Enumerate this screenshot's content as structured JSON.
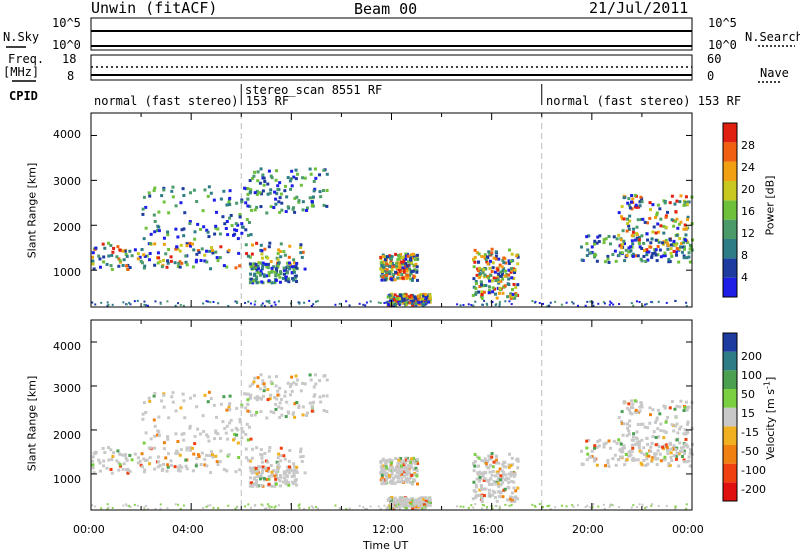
{
  "header": {
    "station": "Unwin (fitACF)",
    "beam": "Beam 00",
    "date": "21/Jul/2011"
  },
  "top_panels": {
    "nsky_label": "N.Sky",
    "nsky_ticks": [
      "10^5",
      "10^0"
    ],
    "nsearch_label": "N.Search",
    "nsearch_ticks": [
      "10^5",
      "10^0"
    ],
    "freq_label": "Freq.",
    "freq_unit": "[MHz]",
    "freq_ticks": [
      "18",
      "8"
    ],
    "nave_label": "Nave",
    "nave_ticks": [
      "60",
      "0"
    ],
    "cpid_label": "CPID",
    "cpid_segments": [
      {
        "label": "normal (fast stereo) 153 RF",
        "start_hour": 0
      },
      {
        "label": "stereo_scan 8551 RF",
        "start_hour": 6
      },
      {
        "label": "normal (fast stereo) 153 RF",
        "start_hour": 18
      }
    ]
  },
  "power_colorbar": {
    "title": "Power [dB]",
    "ticks": [
      "28",
      "24",
      "20",
      "16",
      "12",
      "8",
      "4"
    ],
    "colors": [
      "#1e1ee6",
      "#1e3ca0",
      "#2e7d86",
      "#4a9a6a",
      "#6ec03a",
      "#c8c820",
      "#f0a010",
      "#f06010",
      "#e02010"
    ]
  },
  "velocity_colorbar": {
    "title": "Velocity [m s",
    "title_sup": "-1",
    "title_end": "]",
    "ticks": [
      "200",
      "100",
      "50",
      "15",
      "-15",
      "-50",
      "-100",
      "-200"
    ],
    "colors": [
      "#1e3ca0",
      "#2e7d86",
      "#4aa050",
      "#7ad040",
      "#c8c8c8",
      "#f0b020",
      "#f08010",
      "#f04010",
      "#e01010"
    ]
  },
  "chart_data": {
    "type": "heatmap",
    "xlabel": "Time UT",
    "x_ticks": [
      "00:00",
      "04:00",
      "08:00",
      "12:00",
      "16:00",
      "20:00",
      "00:00"
    ],
    "xlim_hours": [
      0,
      24
    ],
    "ylabel": "Slant Range [km]",
    "y_ticks": [
      "4000",
      "3000",
      "2000",
      "1000"
    ],
    "ylim_km": [
      180,
      4500
    ],
    "power_regions": [
      {
        "t0": 0.0,
        "t1": 8.5,
        "r0": 1050,
        "r1": 1650,
        "level": "strong"
      },
      {
        "t0": 2.0,
        "t1": 6.5,
        "r0": 1700,
        "r1": 2900,
        "level": "medium"
      },
      {
        "t0": 6.2,
        "t1": 9.5,
        "r0": 2300,
        "r1": 3300,
        "level": "medium"
      },
      {
        "t0": 6.3,
        "t1": 8.2,
        "r0": 750,
        "r1": 1200,
        "level": "medium"
      },
      {
        "t0": 11.5,
        "t1": 13.0,
        "r0": 800,
        "r1": 1400,
        "level": "strong"
      },
      {
        "t0": 11.8,
        "t1": 13.5,
        "r0": 250,
        "r1": 500,
        "level": "strong"
      },
      {
        "t0": 15.2,
        "t1": 17.0,
        "r0": 400,
        "r1": 1500,
        "level": "strong"
      },
      {
        "t0": 19.5,
        "t1": 24.0,
        "r0": 1200,
        "r1": 1800,
        "level": "medium"
      },
      {
        "t0": 21.0,
        "t1": 24.0,
        "r0": 1300,
        "r1": 2700,
        "level": "strong"
      }
    ]
  }
}
